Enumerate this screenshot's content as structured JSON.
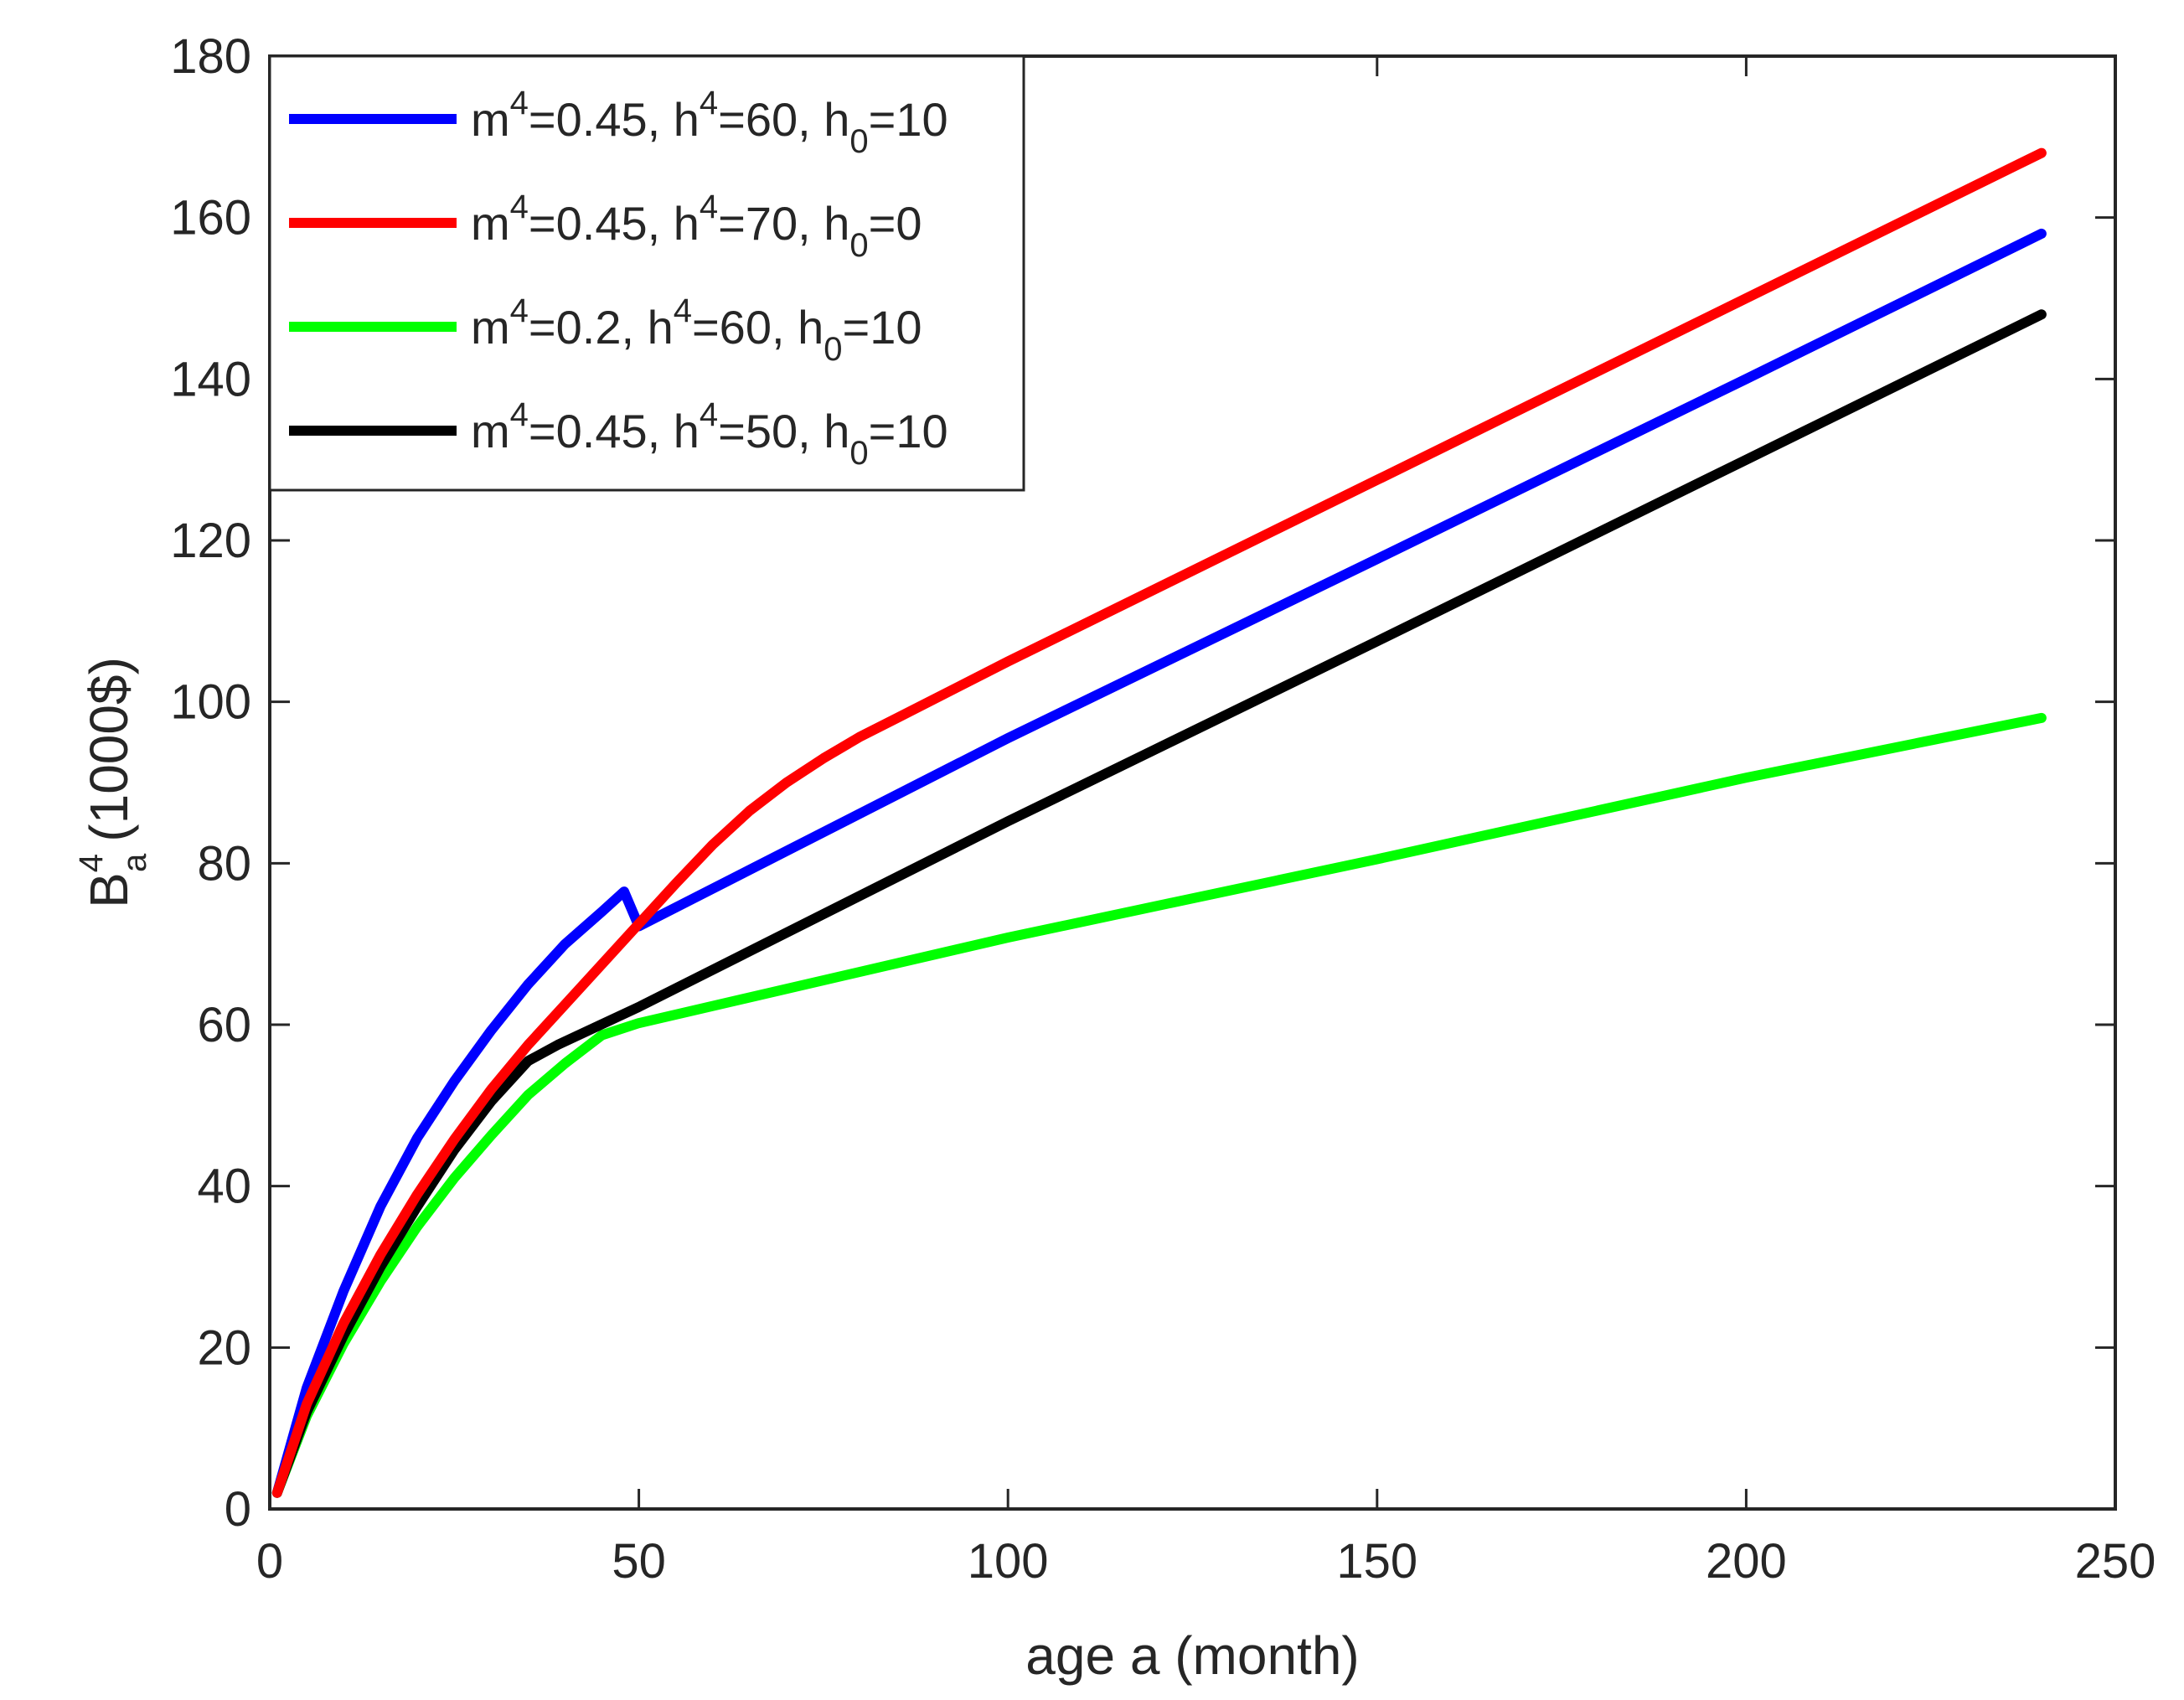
{
  "chart_data": {
    "type": "line",
    "title": "",
    "xlabel": "age a (month)",
    "ylabel": {
      "base": "B",
      "superscript": "4",
      "subscript": "a",
      "unit": "(1000$)"
    },
    "xlim": [
      0,
      250
    ],
    "ylim": [
      0,
      180
    ],
    "xticks": [
      0,
      50,
      100,
      150,
      200,
      250
    ],
    "yticks": [
      0,
      20,
      40,
      60,
      80,
      100,
      120,
      140,
      160,
      180
    ],
    "grid": false,
    "legend_position": "top-left",
    "series": [
      {
        "name": "m4=0.45, h4=60, h0=10",
        "legend": {
          "p1": "m",
          "s1": "4",
          "p2": "=0.45, h",
          "s2": "4",
          "p3": "=60, h",
          "sub": "0",
          "p4": "=10"
        },
        "color": "#0000ff",
        "x": [
          1,
          5,
          10,
          15,
          20,
          25,
          30,
          35,
          40,
          45,
          48,
          50,
          100,
          150,
          200,
          240
        ],
        "y": [
          2,
          15,
          27,
          37.5,
          46,
          53,
          59.3,
          65,
          70,
          74,
          76.5,
          72.2,
          95.5,
          117.7,
          140,
          158
        ]
      },
      {
        "name": "m4=0.45, h4=70, h0=0",
        "legend": {
          "p1": "m",
          "s1": "4",
          "p2": "=0.45, h",
          "s2": "4",
          "p3": "=70, h",
          "sub": "0",
          "p4": "=0"
        },
        "color": "#ff0000",
        "x": [
          1,
          5,
          10,
          15,
          20,
          25,
          30,
          35,
          40,
          45,
          50,
          55,
          60,
          65,
          70,
          75,
          80,
          85,
          100,
          150,
          200,
          240
        ],
        "y": [
          2,
          13,
          23,
          31.5,
          39,
          45.8,
          52,
          57.5,
          62.5,
          67.5,
          72.5,
          77.5,
          82.3,
          86.5,
          90,
          93,
          95.7,
          98,
          105,
          127.5,
          150,
          168
        ]
      },
      {
        "name": "m4=0.2, h4=60, h0=10",
        "legend": {
          "p1": "m",
          "s1": "4",
          "p2": "=0.2, h",
          "s2": "4",
          "p3": "=60, h",
          "sub": "0",
          "p4": "=10"
        },
        "color": "#00ff00",
        "x": [
          1,
          5,
          10,
          15,
          20,
          25,
          30,
          35,
          40,
          45,
          50,
          100,
          150,
          200,
          240
        ],
        "y": [
          2,
          11.5,
          20.5,
          28.2,
          35,
          41,
          46.3,
          51.3,
          55.2,
          58.7,
          60.2,
          70.8,
          80.5,
          90.6,
          98
        ]
      },
      {
        "name": "m4=0.45, h4=50, h0=10",
        "legend": {
          "p1": "m",
          "s1": "4",
          "p2": "=0.45, h",
          "s2": "4",
          "p3": "=50, h",
          "sub": "0",
          "p4": "=10"
        },
        "color": "#000000",
        "x": [
          1,
          5,
          10,
          15,
          20,
          25,
          30,
          35,
          39,
          50,
          100,
          150,
          200,
          240
        ],
        "y": [
          2,
          12,
          21.5,
          30,
          37.5,
          44.5,
          50.5,
          55.5,
          57.5,
          62.2,
          85.2,
          107.5,
          130,
          148
        ]
      }
    ]
  }
}
